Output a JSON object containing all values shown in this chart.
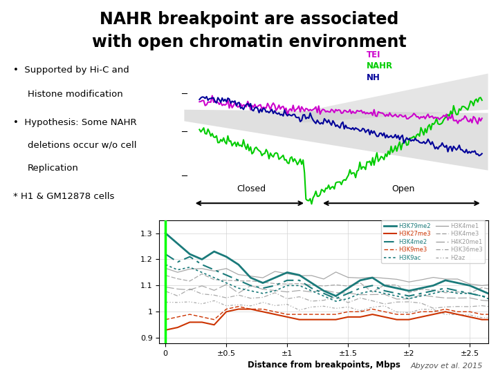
{
  "title_line1": "NAHR breakpoint are associated",
  "title_line2": "with open chromatin environment",
  "lei_color": "#cc00cc",
  "nahr_color": "#00cc00",
  "nh_color": "#000099",
  "closed_label": "Closed",
  "open_label": "Open",
  "citation": "Abyzov et al. 2015",
  "bottom_xlabel": "Distance from breakpoints, Mbps",
  "bg_color": "#ffffff",
  "teal_color": "#1a7a7a",
  "red_color": "#cc3300",
  "gray_color": "#999999"
}
